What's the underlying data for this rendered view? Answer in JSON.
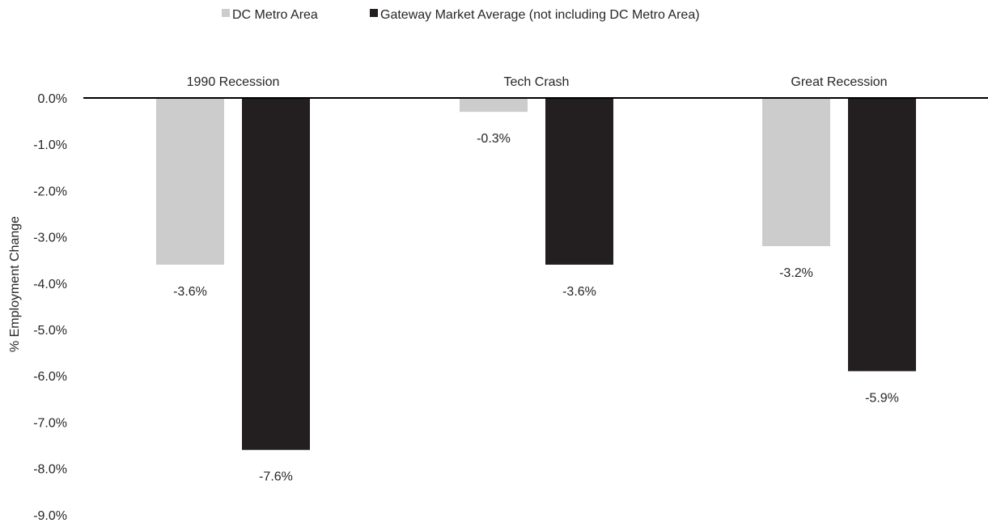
{
  "chart_data": {
    "type": "bar",
    "title": "",
    "xlabel": "",
    "ylabel": "% Employment Change",
    "categories": [
      "1990 Recession",
      "Tech Crash",
      "Great Recession"
    ],
    "series": [
      {
        "name": "DC Metro Area",
        "color": "#cccccc",
        "values": [
          -3.6,
          -0.3,
          -3.2
        ],
        "labels": [
          "-3.6%",
          "-0.3%",
          "-3.2%"
        ]
      },
      {
        "name": "Gateway Market Average (not including DC Metro Area)",
        "color": "#231f20",
        "values": [
          -7.6,
          -3.6,
          -5.9
        ],
        "labels": [
          "-7.6%",
          "-3.6%",
          "-5.9%"
        ]
      }
    ],
    "ylim": [
      -9.0,
      0.0
    ],
    "yticks": [
      0.0,
      -1.0,
      -2.0,
      -3.0,
      -4.0,
      -5.0,
      -6.0,
      -7.0,
      -8.0,
      -9.0
    ],
    "ytick_labels": [
      "0.0%",
      "-1.0%",
      "-2.0%",
      "-3.0%",
      "-4.0%",
      "-5.0%",
      "-6.0%",
      "-7.0%",
      "-8.0%",
      "-9.0%"
    ],
    "grid": false,
    "legend_position": "top-center"
  }
}
